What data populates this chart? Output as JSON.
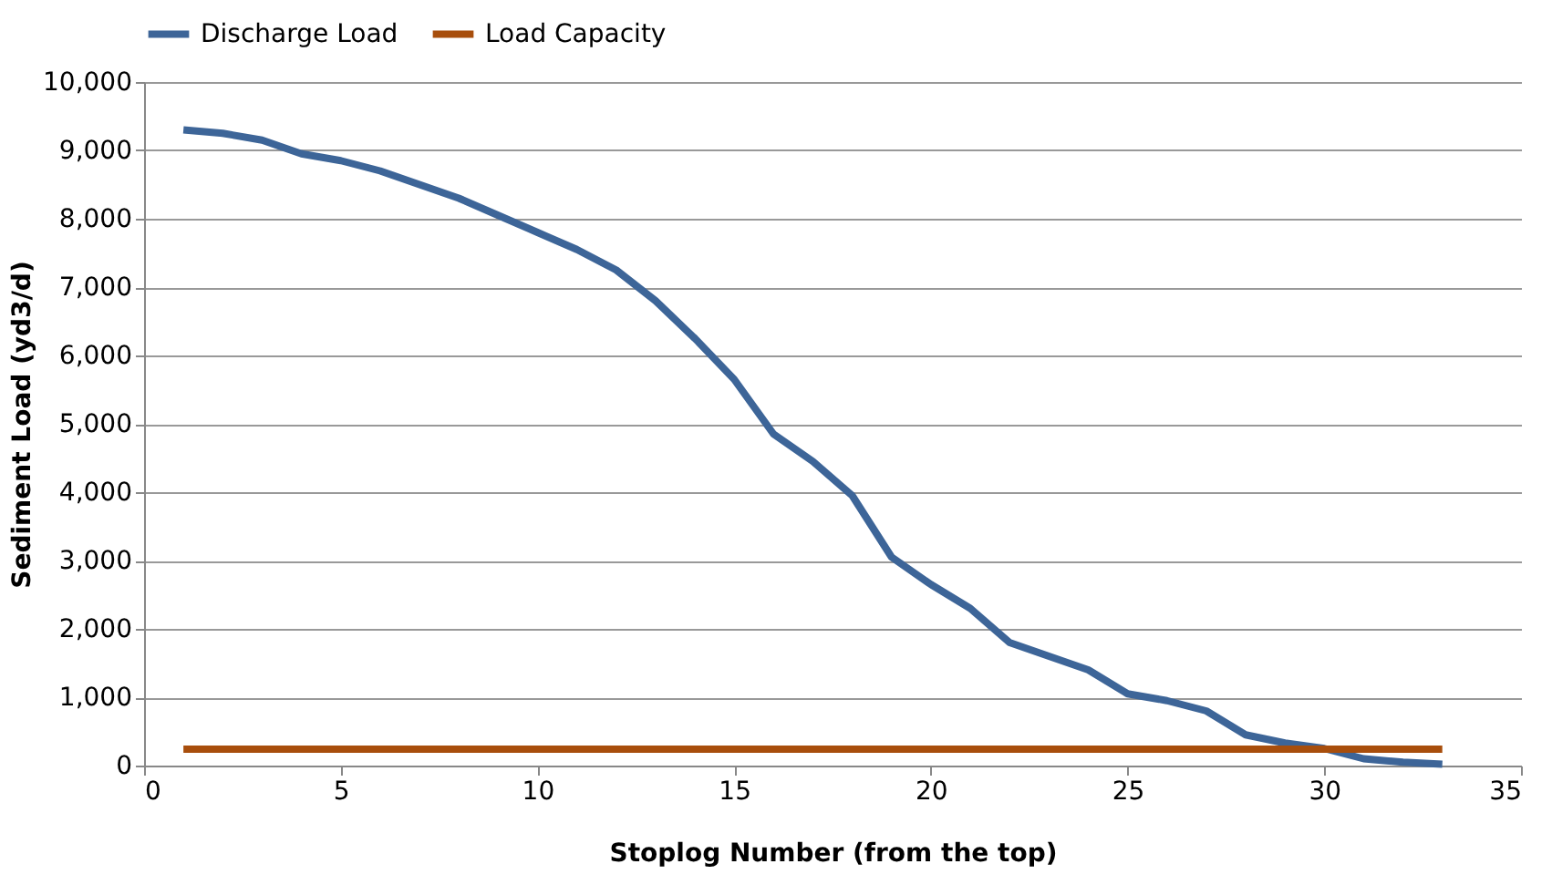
{
  "chart_data": {
    "type": "line",
    "xlabel": "Stoplog Number (from the top)",
    "ylabel": "Sediment Load (yd3/d)",
    "x": [
      1,
      2,
      3,
      4,
      5,
      6,
      7,
      8,
      9,
      10,
      11,
      12,
      13,
      14,
      15,
      16,
      17,
      18,
      19,
      20,
      21,
      22,
      23,
      24,
      25,
      26,
      27,
      28,
      29,
      30,
      31,
      32,
      33
    ],
    "series": [
      {
        "name": "Discharge Load",
        "color": "#3d6598",
        "values": [
          9300,
          9250,
          9150,
          8950,
          8850,
          8700,
          8500,
          8300,
          8050,
          7800,
          7550,
          7250,
          6800,
          6250,
          5650,
          4850,
          4450,
          3950,
          3050,
          2650,
          2300,
          1800,
          1600,
          1400,
          1050,
          950,
          800,
          450,
          330,
          250,
          100,
          50,
          20
        ]
      },
      {
        "name": "Load Capacity",
        "color": "#a84e0c",
        "values": [
          240,
          240,
          240,
          240,
          240,
          240,
          240,
          240,
          240,
          240,
          240,
          240,
          240,
          240,
          240,
          240,
          240,
          240,
          240,
          240,
          240,
          240,
          240,
          240,
          240,
          240,
          240,
          240,
          240,
          240,
          240,
          240,
          240
        ]
      }
    ],
    "xlim": [
      0,
      35
    ],
    "xticks": [
      0,
      5,
      10,
      15,
      20,
      25,
      30,
      35
    ],
    "ylim": [
      0,
      10000
    ],
    "yticks": [
      0,
      {
        "value": 1000,
        "label": "1,000"
      },
      {
        "value": 2000,
        "label": "2,000"
      },
      {
        "value": 3000,
        "label": "3,000"
      },
      {
        "value": 4000,
        "label": "4,000"
      },
      {
        "value": 5000,
        "label": "5,000"
      },
      {
        "value": 6000,
        "label": "6,000"
      },
      {
        "value": 7000,
        "label": "7,000"
      },
      {
        "value": 8000,
        "label": "8,000"
      },
      {
        "value": 9000,
        "label": "9,000"
      },
      {
        "value": 10000,
        "label": "10,000"
      }
    ],
    "grid": "y",
    "legend": "top",
    "marker": "none",
    "line_style": "solid"
  }
}
